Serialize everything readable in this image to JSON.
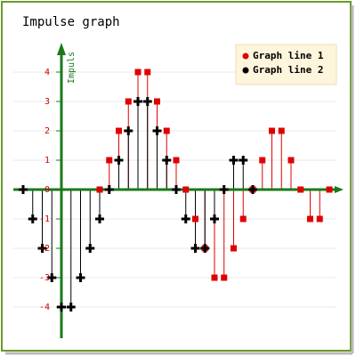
{
  "chart_data": {
    "type": "impulse",
    "title": "Impulse graph",
    "y_label": "Impuls",
    "categories": [
      null,
      null,
      null,
      null,
      null,
      null,
      null,
      null,
      null,
      null,
      null,
      null,
      null,
      null,
      null,
      null,
      null,
      null,
      null,
      null,
      null,
      null,
      null,
      null,
      null,
      null,
      null,
      null,
      null,
      null,
      null,
      null,
      null
    ],
    "series": [
      {
        "name": "Graph line 1",
        "color": "#e00000",
        "marker": "square",
        "values": [
          null,
          null,
          null,
          null,
          null,
          null,
          null,
          null,
          0,
          1,
          2,
          3,
          4,
          4,
          3,
          2,
          1,
          0,
          -1,
          -2,
          -3,
          -3,
          -2,
          -1,
          0,
          1,
          2,
          2,
          1,
          0,
          -1,
          -1,
          0
        ]
      },
      {
        "name": "Graph line 2",
        "color": "#000000",
        "marker": "cross",
        "values": [
          0,
          -1,
          -2,
          -3,
          -4,
          -4,
          -3,
          -2,
          -1,
          0,
          1,
          2,
          3,
          3,
          2,
          1,
          0,
          -1,
          -2,
          -2,
          -1,
          0,
          1,
          1,
          0,
          null,
          null,
          null,
          null,
          null,
          null,
          null,
          null
        ]
      }
    ],
    "ylim": [
      -5,
      5
    ],
    "yticks": [
      -4,
      -3,
      -2,
      -1,
      0,
      1,
      2,
      3,
      4
    ],
    "grid": true,
    "legend": "top-right"
  }
}
